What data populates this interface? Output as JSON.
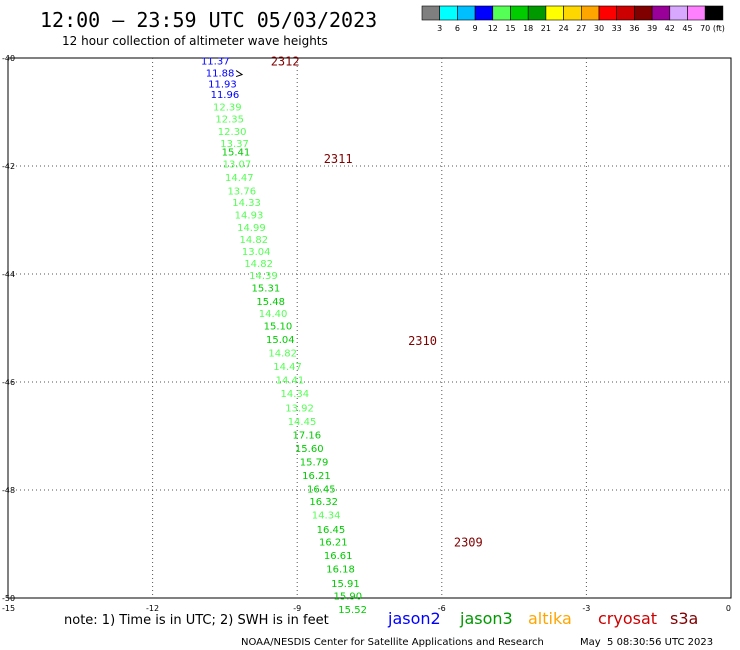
{
  "header": {
    "title": "12:00 – 23:59 UTC 05/03/2023",
    "subtitle": "12 hour collection of altimeter wave heights"
  },
  "color_scale": {
    "labels": [
      "3",
      "6",
      "9",
      "12",
      "15",
      "18",
      "21",
      "24",
      "27",
      "30",
      "33",
      "36",
      "39",
      "42",
      "45",
      "70"
    ],
    "unit": "(ft)",
    "colors": [
      "#7f7f7f",
      "#00ffff",
      "#00bfff",
      "#0000ff",
      "#55ff55",
      "#00cc00",
      "#009900",
      "#ffff00",
      "#ffd700",
      "#ffa500",
      "#ff0000",
      "#cc0000",
      "#800000",
      "#990099",
      "#d8a8ff",
      "#ff80ff",
      "#000000"
    ]
  },
  "footer": {
    "note": "note: 1) Time is in UTC; 2) SWH is in feet",
    "credit": "NOAA/NESDIS Center for Satellite Applications and Research",
    "timestamp": "May  5 08:30:56 UTC 2023"
  },
  "chart_data": {
    "type": "scatter",
    "title": "12:00 – 23:59 UTC 05/03/2023",
    "subtitle": "12 hour collection of altimeter wave heights",
    "xlim": [
      -15,
      0
    ],
    "ylim": [
      -50,
      -40
    ],
    "x_ticks": [
      -15,
      -12,
      -9,
      -6,
      -3,
      0
    ],
    "y_ticks": [
      -40,
      -42,
      -44,
      -46,
      -48,
      -50
    ],
    "x_tick_labels": [
      "-15",
      "-12",
      "-9",
      "-6",
      "-3",
      "0"
    ],
    "y_tick_labels": [
      "-40",
      "-42",
      "-44",
      "-46",
      "-48",
      "-50"
    ],
    "grid": true,
    "legend": [
      {
        "name": "jason2",
        "color": "#0000ff"
      },
      {
        "name": "jason3",
        "color": "#009900"
      },
      {
        "name": "altika",
        "color": "#ffa500"
      },
      {
        "name": "cryosat",
        "color": "#cc0000"
      },
      {
        "name": "s3a",
        "color": "#800000"
      }
    ],
    "series": [
      {
        "name": "jason3",
        "points": [
          {
            "x": -10.7,
            "y": -40.05,
            "label": "11.37",
            "color": "#0000ff"
          },
          {
            "x": -10.6,
            "y": -40.27,
            "label": "11.88",
            "color": "#0000ff"
          },
          {
            "x": -10.55,
            "y": -40.47,
            "label": "11.93",
            "color": "#0000ff"
          },
          {
            "x": -10.5,
            "y": -40.67,
            "label": "11.96",
            "color": "#0000ff"
          },
          {
            "x": -10.45,
            "y": -40.9,
            "label": "12.39",
            "color": "#55ff55"
          },
          {
            "x": -10.4,
            "y": -41.12,
            "label": "12.35",
            "color": "#55ff55"
          },
          {
            "x": -10.35,
            "y": -41.35,
            "label": "12.30",
            "color": "#55ff55"
          },
          {
            "x": -10.3,
            "y": -41.57,
            "label": "13.37",
            "color": "#55ff55"
          },
          {
            "x": -10.27,
            "y": -41.73,
            "label": "15.41",
            "color": "#00cc00"
          },
          {
            "x": -10.25,
            "y": -41.95,
            "label": "13.07",
            "color": "#55ff55"
          },
          {
            "x": -10.2,
            "y": -42.2,
            "label": "14.47",
            "color": "#55ff55"
          },
          {
            "x": -10.15,
            "y": -42.45,
            "label": "13.76",
            "color": "#55ff55"
          },
          {
            "x": -10.05,
            "y": -42.67,
            "label": "14.33",
            "color": "#55ff55"
          },
          {
            "x": -10.0,
            "y": -42.9,
            "label": "14.93",
            "color": "#55ff55"
          },
          {
            "x": -9.95,
            "y": -43.13,
            "label": "14.99",
            "color": "#55ff55"
          },
          {
            "x": -9.9,
            "y": -43.35,
            "label": "14.82",
            "color": "#55ff55"
          },
          {
            "x": -9.85,
            "y": -43.57,
            "label": "13.04",
            "color": "#55ff55"
          },
          {
            "x": -9.8,
            "y": -43.8,
            "label": "14.82",
            "color": "#55ff55"
          },
          {
            "x": -9.7,
            "y": -44.02,
            "label": "14.39",
            "color": "#55ff55"
          },
          {
            "x": -9.65,
            "y": -44.25,
            "label": "15.31",
            "color": "#00cc00"
          },
          {
            "x": -9.55,
            "y": -44.5,
            "label": "15.48",
            "color": "#00cc00"
          },
          {
            "x": -9.5,
            "y": -44.72,
            "label": "14.40",
            "color": "#55ff55"
          },
          {
            "x": -9.4,
            "y": -44.95,
            "label": "15.10",
            "color": "#00cc00"
          },
          {
            "x": -9.35,
            "y": -45.2,
            "label": "15.04",
            "color": "#00cc00"
          },
          {
            "x": -9.3,
            "y": -45.45,
            "label": "14.82",
            "color": "#55ff55"
          },
          {
            "x": -9.2,
            "y": -45.7,
            "label": "14.47",
            "color": "#55ff55"
          },
          {
            "x": -9.15,
            "y": -45.95,
            "label": "14.41",
            "color": "#55ff55"
          },
          {
            "x": -9.05,
            "y": -46.2,
            "label": "14.34",
            "color": "#55ff55"
          },
          {
            "x": -8.95,
            "y": -46.47,
            "label": "13.92",
            "color": "#55ff55"
          },
          {
            "x": -8.9,
            "y": -46.72,
            "label": "14.45",
            "color": "#55ff55"
          },
          {
            "x": -8.8,
            "y": -46.97,
            "label": "17.16",
            "color": "#00cc00"
          },
          {
            "x": -8.75,
            "y": -47.22,
            "label": "15.60",
            "color": "#00cc00"
          },
          {
            "x": -8.65,
            "y": -47.47,
            "label": "15.79",
            "color": "#00cc00"
          },
          {
            "x": -8.6,
            "y": -47.72,
            "label": "16.21",
            "color": "#00cc00"
          },
          {
            "x": -8.5,
            "y": -47.97,
            "label": "16.45",
            "color": "#00cc00"
          },
          {
            "x": -8.45,
            "y": -48.2,
            "label": "16.32",
            "color": "#00cc00"
          },
          {
            "x": -8.4,
            "y": -48.45,
            "label": "14.34",
            "color": "#55ff55"
          },
          {
            "x": -8.3,
            "y": -48.72,
            "label": "16.45",
            "color": "#00cc00"
          },
          {
            "x": -8.25,
            "y": -48.95,
            "label": "16.21",
            "color": "#00cc00"
          },
          {
            "x": -8.15,
            "y": -49.2,
            "label": "16.61",
            "color": "#00cc00"
          },
          {
            "x": -8.1,
            "y": -49.45,
            "label": "16.18",
            "color": "#00cc00"
          },
          {
            "x": -8.0,
            "y": -49.72,
            "label": "15.91",
            "color": "#00cc00"
          },
          {
            "x": -7.95,
            "y": -49.95,
            "label": "15.90",
            "color": "#00cc00"
          },
          {
            "x": -7.85,
            "y": -50.2,
            "label": "15.52",
            "color": "#00cc00"
          }
        ]
      }
    ],
    "time_labels": [
      {
        "x": -9.25,
        "y": -40.05,
        "text": "2312"
      },
      {
        "x": -8.15,
        "y": -41.85,
        "text": "2311"
      },
      {
        "x": -6.4,
        "y": -45.22,
        "text": "2310"
      },
      {
        "x": -5.45,
        "y": -48.95,
        "text": "2309"
      }
    ],
    "time_label_color": "#800000"
  }
}
